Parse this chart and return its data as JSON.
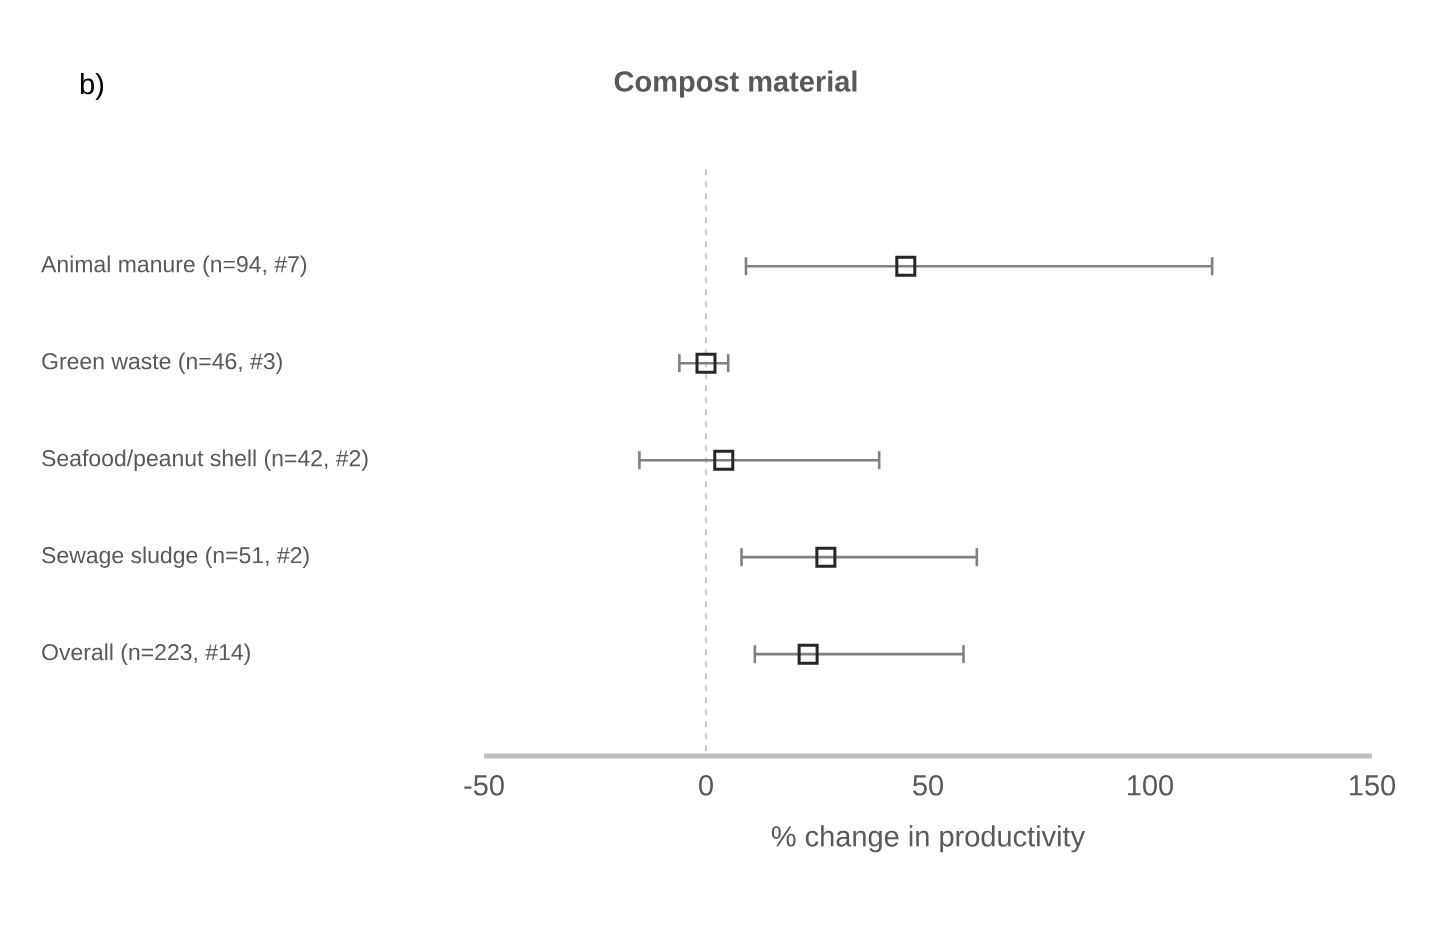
{
  "chart_data": {
    "type": "scatter",
    "orientation": "horizontal",
    "title": "Compost material",
    "xlabel": "% change in productivity",
    "annotations": [
      "b)"
    ],
    "categories": [
      "Animal manure (n=94, #7)",
      "Green waste (n=46, #3)",
      "Seafood/peanut shell (n=42, #2)",
      "Sewage sludge (n=51, #2)",
      "Overall (n=223, #14)"
    ],
    "series": [
      {
        "color": "#262626",
        "values": [
          45,
          0,
          4,
          27,
          23
        ],
        "errors": [
          [
            9,
            114
          ],
          [
            -6,
            5
          ],
          [
            -15,
            39
          ],
          [
            8,
            61
          ],
          [
            11,
            58
          ]
        ]
      }
    ],
    "xlim": [
      -50,
      150
    ],
    "xticks": [
      -50,
      0,
      50,
      100,
      150
    ],
    "ref_lines": [
      {
        "axis": "x",
        "value": 0,
        "color": "#a6a6a6",
        "line_style": "dashed"
      }
    ],
    "marker": "square",
    "grid": false
  }
}
